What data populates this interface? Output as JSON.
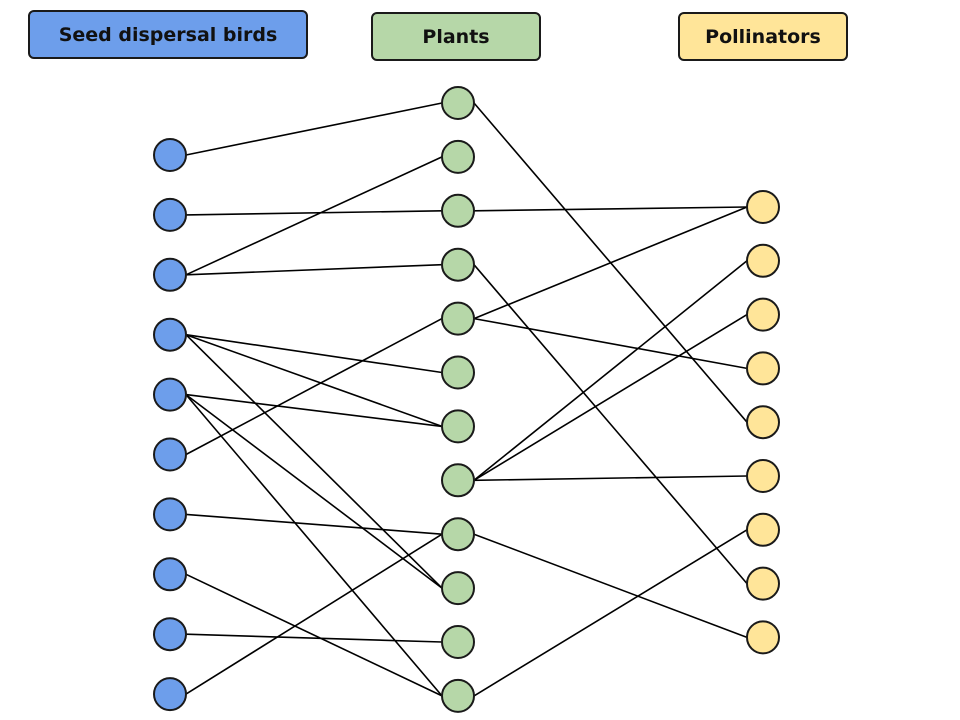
{
  "colors": {
    "birds": "#6d9eeb",
    "plants": "#b6d7a8",
    "pollinators": "#ffe599",
    "edge": "#000000",
    "outline": "#1a1a1a"
  },
  "groups": {
    "birds": {
      "label": "Seed dispersal birds",
      "count": 10
    },
    "plants": {
      "label": "Plants",
      "count": 12
    },
    "pollinators": {
      "label": "Pollinators",
      "count": 9
    }
  },
  "edges": {
    "bird_plant": [
      [
        0,
        0
      ],
      [
        1,
        2
      ],
      [
        2,
        1
      ],
      [
        2,
        3
      ],
      [
        3,
        5
      ],
      [
        3,
        6
      ],
      [
        3,
        9
      ],
      [
        4,
        6
      ],
      [
        4,
        9
      ],
      [
        4,
        11
      ],
      [
        5,
        4
      ],
      [
        6,
        8
      ],
      [
        7,
        11
      ],
      [
        8,
        10
      ],
      [
        9,
        8
      ]
    ],
    "plant_pollinator": [
      [
        0,
        4
      ],
      [
        2,
        0
      ],
      [
        3,
        7
      ],
      [
        4,
        0
      ],
      [
        4,
        3
      ],
      [
        7,
        1
      ],
      [
        7,
        2
      ],
      [
        7,
        5
      ],
      [
        8,
        8
      ],
      [
        11,
        6
      ]
    ]
  }
}
